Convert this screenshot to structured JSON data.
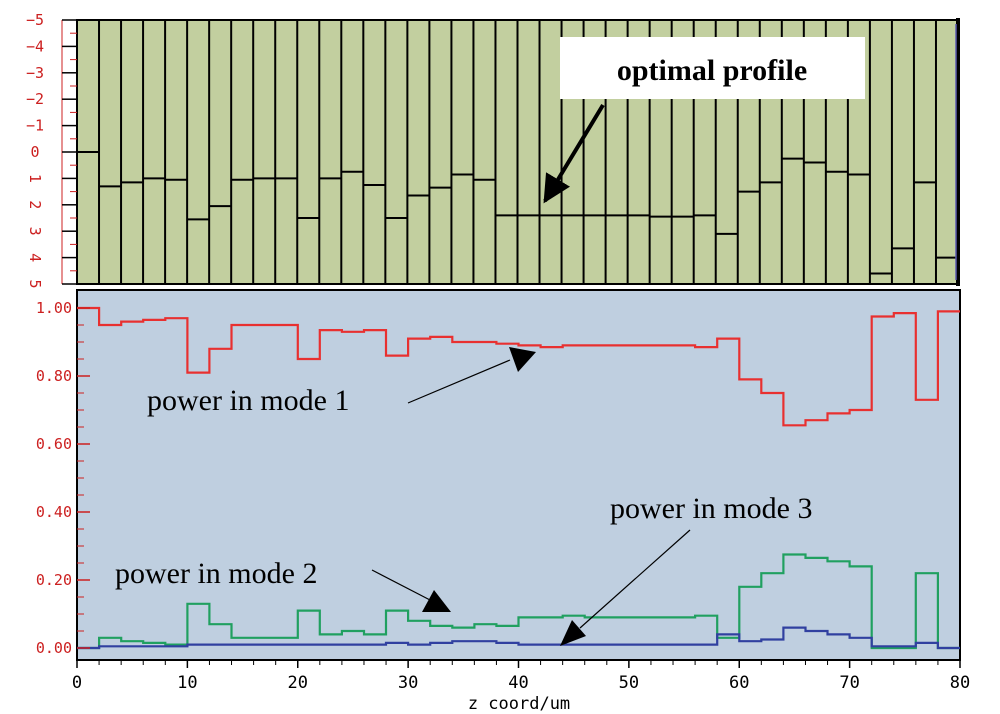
{
  "chart_data": [
    {
      "type": "bar",
      "subtype": "segmented-profile",
      "background": "#c2cf9f",
      "y_tick_labels": [
        "−5",
        "−4",
        "−3",
        "−2",
        "−1",
        "0",
        "1",
        "2",
        "3",
        "4",
        "5"
      ],
      "ylim": [
        -5,
        5
      ],
      "tick_color": "#cc2020",
      "segment_edges": [
        0,
        2,
        4,
        6,
        8,
        10,
        12,
        14,
        16,
        18,
        20,
        22,
        24,
        26,
        28,
        30,
        32,
        34,
        36,
        38,
        40,
        42,
        44,
        46,
        48,
        50,
        52,
        54,
        56,
        58,
        60,
        62,
        64,
        66,
        68,
        70,
        72,
        74,
        76,
        78,
        80
      ],
      "values": [
        0,
        1.3,
        1.15,
        1.0,
        1.05,
        2.55,
        2.05,
        1.05,
        1.0,
        1.0,
        2.5,
        1.0,
        0.75,
        1.25,
        2.5,
        1.65,
        1.35,
        0.85,
        1.05,
        2.4,
        2.4,
        2.4,
        2.4,
        2.4,
        2.4,
        2.4,
        2.45,
        2.45,
        2.4,
        3.1,
        1.5,
        1.15,
        0.25,
        0.4,
        0.75,
        0.85,
        4.6,
        3.65,
        1.15,
        4.0
      ],
      "annotations": [
        {
          "text": "optimal profile",
          "target_x": 41.3,
          "target_y": 2.0
        }
      ]
    },
    {
      "type": "line",
      "step": true,
      "background": "#bfcfe0",
      "xlabel": "z coord/um",
      "x_ticks": [
        0,
        10,
        20,
        30,
        40,
        50,
        60,
        70,
        80
      ],
      "xlim": [
        0,
        80
      ],
      "ylim": [
        0,
        1.0
      ],
      "y_ticks": [
        0.0,
        0.2,
        0.4,
        0.6,
        0.8,
        1.0
      ],
      "y_tick_labels": [
        "0.00",
        "0.20",
        "0.40",
        "0.60",
        "0.80",
        "1.00"
      ],
      "y_tick_color": "#cc2020",
      "x_tick_color": "#000000",
      "segment_edges": [
        0,
        2,
        4,
        6,
        8,
        10,
        12,
        14,
        16,
        18,
        20,
        22,
        24,
        26,
        28,
        30,
        32,
        34,
        36,
        38,
        40,
        42,
        44,
        46,
        48,
        50,
        52,
        54,
        56,
        58,
        60,
        62,
        64,
        66,
        68,
        70,
        72,
        74,
        76,
        78,
        80
      ],
      "series": [
        {
          "name": "power in mode 1",
          "color": "#e83030",
          "values": [
            1.0,
            0.95,
            0.96,
            0.965,
            0.97,
            0.81,
            0.88,
            0.95,
            0.95,
            0.95,
            0.85,
            0.935,
            0.93,
            0.935,
            0.86,
            0.91,
            0.915,
            0.9,
            0.9,
            0.895,
            0.89,
            0.885,
            0.89,
            0.89,
            0.89,
            0.89,
            0.89,
            0.89,
            0.885,
            0.91,
            0.79,
            0.75,
            0.655,
            0.67,
            0.69,
            0.7,
            0.975,
            0.985,
            0.73,
            0.99
          ]
        },
        {
          "name": "power in mode 2",
          "color": "#20a060",
          "values": [
            0.0,
            0.03,
            0.02,
            0.015,
            0.01,
            0.13,
            0.07,
            0.03,
            0.03,
            0.03,
            0.11,
            0.04,
            0.05,
            0.04,
            0.11,
            0.08,
            0.065,
            0.06,
            0.07,
            0.065,
            0.09,
            0.09,
            0.095,
            0.09,
            0.09,
            0.09,
            0.09,
            0.09,
            0.095,
            0.03,
            0.18,
            0.22,
            0.275,
            0.265,
            0.255,
            0.24,
            0.0,
            0.0,
            0.22,
            0.0
          ]
        },
        {
          "name": "power in mode 3",
          "color": "#3040a0",
          "values": [
            0.0,
            0.005,
            0.005,
            0.005,
            0.005,
            0.01,
            0.01,
            0.01,
            0.01,
            0.01,
            0.01,
            0.01,
            0.01,
            0.01,
            0.015,
            0.01,
            0.015,
            0.02,
            0.02,
            0.015,
            0.01,
            0.01,
            0.01,
            0.01,
            0.01,
            0.01,
            0.01,
            0.01,
            0.01,
            0.04,
            0.02,
            0.025,
            0.06,
            0.05,
            0.04,
            0.03,
            0.005,
            0.005,
            0.015,
            0.0
          ]
        }
      ],
      "annotations": [
        {
          "text": "power in mode 1",
          "target_x": 41.0,
          "target_y": 0.89
        },
        {
          "text": "power in mode 2",
          "target_x": 34.6,
          "target_y": 0.09
        },
        {
          "text": "power in mode 3",
          "target_x": 40.4,
          "target_y": 0.0
        }
      ]
    }
  ]
}
